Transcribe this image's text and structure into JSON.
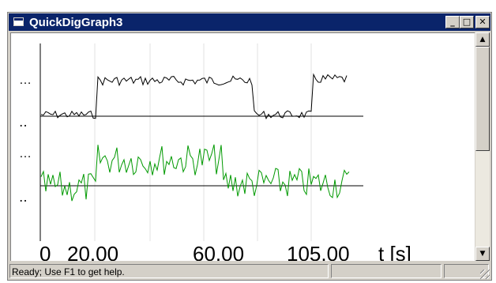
{
  "window": {
    "title": "QuickDigGraph3",
    "minimize_symbol": "_",
    "maximize_symbol": "□",
    "close_symbol": "✕"
  },
  "plot": {
    "channel_labels": [
      "…",
      "‥",
      "…",
      "‥"
    ],
    "x_ticks": [
      "0",
      "20.00",
      "60.00",
      "105.00"
    ],
    "x_unit": "t [s]",
    "colors": {
      "trace_top": "#000000",
      "trace_bottom": "#009900",
      "baseline": "#000000",
      "grid": "#e0e0e0"
    }
  },
  "scrollbar": {
    "up_symbol": "▲",
    "down_symbol": "▼"
  },
  "status": {
    "text": "Ready; Use F1 to get help."
  }
}
